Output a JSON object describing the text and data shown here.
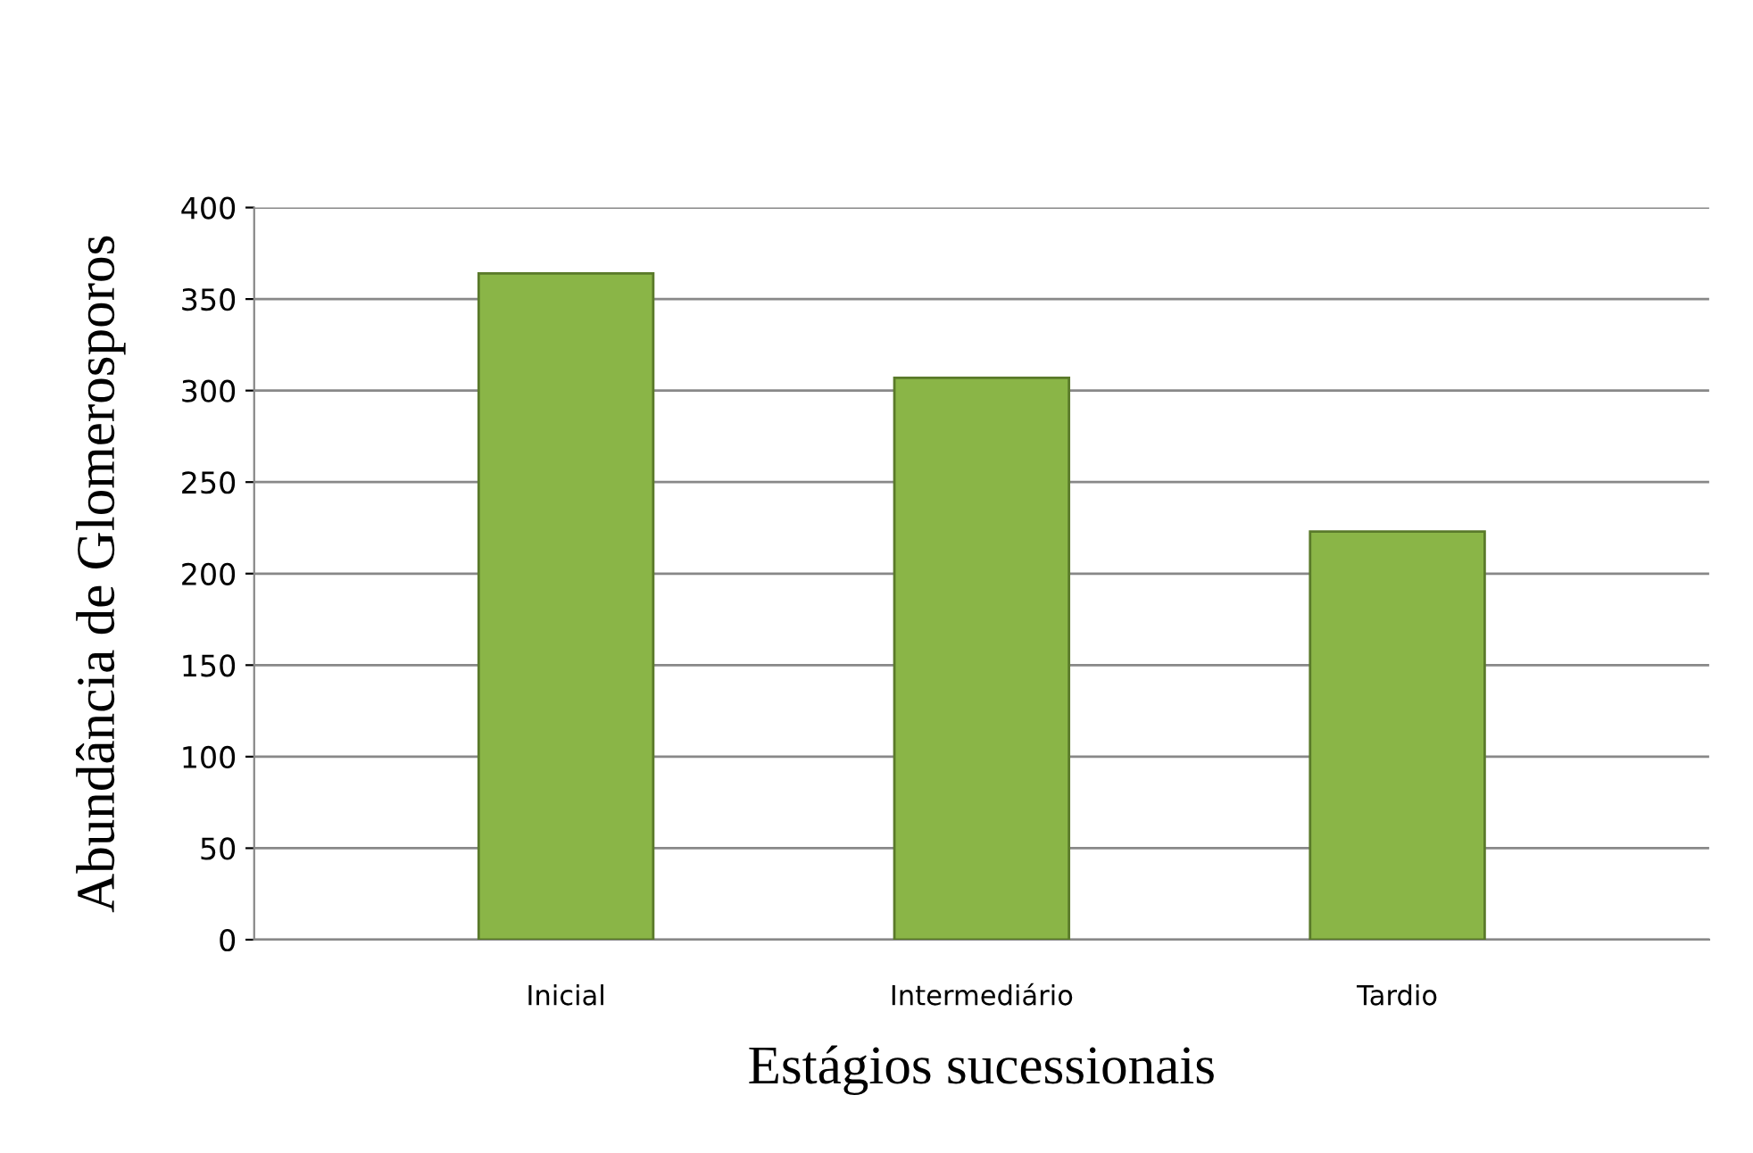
{
  "chart_data": {
    "type": "bar",
    "xlabel": "Estágios sucessionais",
    "ylabel": "Abundância de Glomerosporos",
    "categories": [
      "Inicial",
      "Intermediário",
      "Tardio"
    ],
    "values": [
      364,
      307,
      223
    ],
    "color": "#8ab547",
    "ylim": [
      0,
      400
    ],
    "yticks": [
      0,
      50,
      100,
      150,
      200,
      250,
      300,
      350,
      400
    ],
    "grid": "y",
    "legend": false
  }
}
